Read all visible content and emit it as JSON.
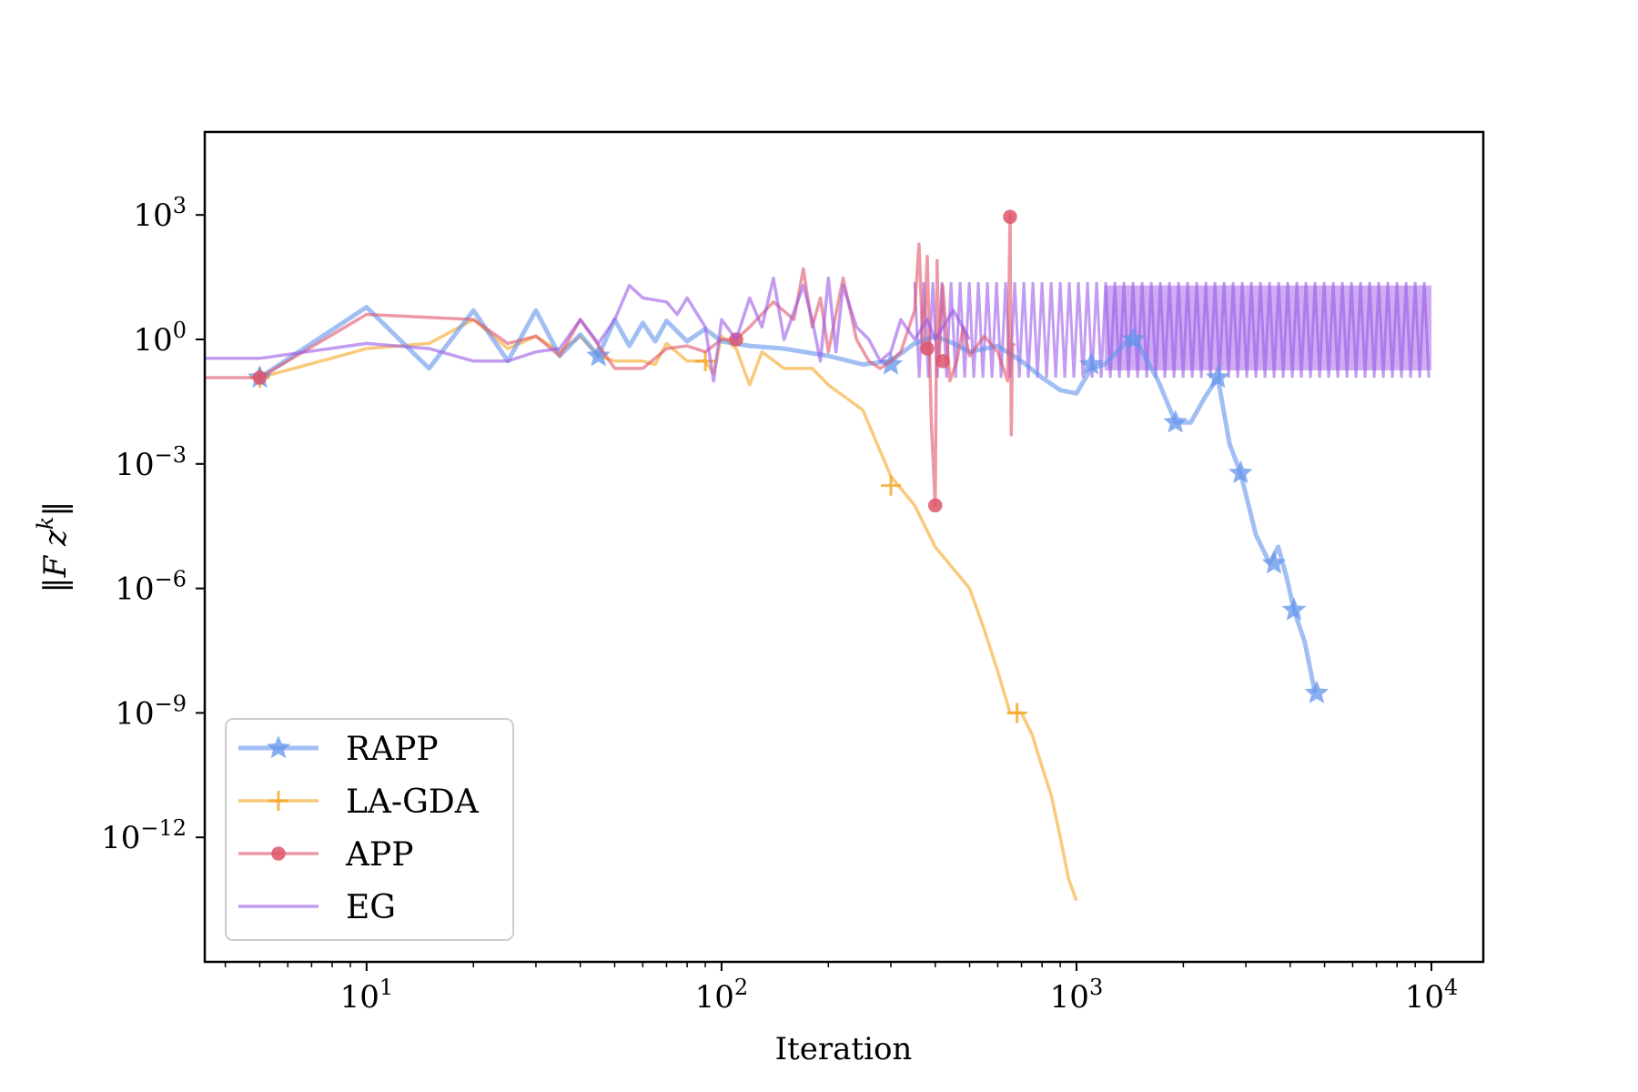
{
  "chart_data": {
    "type": "line",
    "xlabel": "Iteration",
    "ylabel": "‖F z^k‖",
    "x_scale": "log",
    "y_scale": "log",
    "xlim": [
      3.5,
      14000
    ],
    "ylim": [
      1e-15,
      100000.0
    ],
    "x_major_ticks": [
      {
        "value": 10,
        "base": "10",
        "exp": "1"
      },
      {
        "value": 100,
        "base": "10",
        "exp": "2"
      },
      {
        "value": 1000,
        "base": "10",
        "exp": "3"
      },
      {
        "value": 10000,
        "base": "10",
        "exp": "4"
      }
    ],
    "y_major_ticks": [
      {
        "value": 1000,
        "base": "10",
        "exp": "3"
      },
      {
        "value": 1,
        "base": "10",
        "exp": "0"
      },
      {
        "value": 0.001,
        "base": "10",
        "exp": "−3"
      },
      {
        "value": 1e-06,
        "base": "10",
        "exp": "−6"
      },
      {
        "value": 1e-09,
        "base": "10",
        "exp": "−9"
      },
      {
        "value": 1e-12,
        "base": "10",
        "exp": "−12"
      }
    ],
    "grid": false,
    "legend_position": "lower-left",
    "series": [
      {
        "name": "RAPP",
        "color": "#6495ed",
        "marker": "star",
        "points": [
          [
            5,
            0.12
          ],
          [
            10,
            6
          ],
          [
            15,
            0.2
          ],
          [
            20,
            5
          ],
          [
            25,
            0.3
          ],
          [
            30,
            5
          ],
          [
            35,
            0.4
          ],
          [
            40,
            1.3
          ],
          [
            45,
            0.4
          ],
          [
            50,
            3
          ],
          [
            55,
            0.7
          ],
          [
            60,
            2.5
          ],
          [
            65,
            0.9
          ],
          [
            70,
            2.8
          ],
          [
            80,
            0.9
          ],
          [
            90,
            1.8
          ],
          [
            100,
            0.9
          ],
          [
            120,
            0.7
          ],
          [
            150,
            0.6
          ],
          [
            200,
            0.4
          ],
          [
            250,
            0.25
          ],
          [
            300,
            0.3
          ],
          [
            350,
            0.8
          ],
          [
            400,
            1.2
          ],
          [
            450,
            0.8
          ],
          [
            500,
            0.5
          ],
          [
            600,
            0.7
          ],
          [
            700,
            0.3
          ],
          [
            800,
            0.12
          ],
          [
            900,
            0.06
          ],
          [
            1000,
            0.05
          ],
          [
            1100,
            0.2
          ],
          [
            1200,
            0.25
          ],
          [
            1300,
            0.5
          ],
          [
            1400,
            1.0
          ],
          [
            1500,
            0.7
          ],
          [
            1700,
            0.1
          ],
          [
            1900,
            0.01
          ],
          [
            2100,
            0.01
          ],
          [
            2300,
            0.04
          ],
          [
            2500,
            0.12
          ],
          [
            2700,
            0.003
          ],
          [
            2900,
            0.0006
          ],
          [
            3200,
            2e-05
          ],
          [
            3500,
            4e-06
          ],
          [
            3700,
            1e-05
          ],
          [
            3900,
            2e-06
          ],
          [
            4100,
            3e-07
          ],
          [
            4400,
            5e-08
          ],
          [
            4700,
            3e-09
          ]
        ],
        "markers": [
          [
            5,
            0.12
          ],
          [
            45,
            0.4
          ],
          [
            300,
            0.25
          ],
          [
            1100,
            0.25
          ],
          [
            1450,
            1.0
          ],
          [
            1900,
            0.01
          ],
          [
            2500,
            0.12
          ],
          [
            2900,
            0.0006
          ],
          [
            3600,
            4e-06
          ],
          [
            4100,
            3e-07
          ],
          [
            4750,
            3e-09
          ]
        ]
      },
      {
        "name": "LA-GDA",
        "color": "#f5a623",
        "marker": "plus",
        "points": [
          [
            5,
            0.12
          ],
          [
            10,
            0.6
          ],
          [
            15,
            0.8
          ],
          [
            20,
            3
          ],
          [
            25,
            0.6
          ],
          [
            30,
            1.2
          ],
          [
            35,
            0.5
          ],
          [
            40,
            1.2
          ],
          [
            45,
            0.4
          ],
          [
            50,
            0.3
          ],
          [
            60,
            0.3
          ],
          [
            65,
            0.25
          ],
          [
            70,
            0.8
          ],
          [
            80,
            0.3
          ],
          [
            90,
            0.3
          ],
          [
            95,
            0.15
          ],
          [
            100,
            1.2
          ],
          [
            110,
            0.6
          ],
          [
            120,
            0.08
          ],
          [
            130,
            0.5
          ],
          [
            150,
            0.2
          ],
          [
            180,
            0.2
          ],
          [
            200,
            0.08
          ],
          [
            250,
            0.02
          ],
          [
            300,
            0.0005
          ],
          [
            350,
            0.0001
          ],
          [
            400,
            1e-05
          ],
          [
            500,
            1e-06
          ],
          [
            550,
            1e-07
          ],
          [
            600,
            1e-08
          ],
          [
            650,
            1e-09
          ],
          [
            700,
            1e-09
          ],
          [
            750,
            3e-10
          ],
          [
            800,
            5e-11
          ],
          [
            850,
            1e-11
          ],
          [
            900,
            1e-12
          ],
          [
            950,
            1e-13
          ],
          [
            1000,
            3e-14
          ]
        ],
        "markers": [
          [
            5,
            0.12
          ],
          [
            90,
            0.3
          ],
          [
            300,
            0.0003
          ],
          [
            680,
            1e-09
          ]
        ]
      },
      {
        "name": "APP",
        "color": "#e0556a",
        "marker": "circle",
        "points": [
          [
            3.5,
            0.12
          ],
          [
            5,
            0.12
          ],
          [
            10,
            4
          ],
          [
            20,
            3
          ],
          [
            25,
            0.8
          ],
          [
            30,
            1.2
          ],
          [
            35,
            0.4
          ],
          [
            40,
            3
          ],
          [
            50,
            0.2
          ],
          [
            60,
            0.2
          ],
          [
            70,
            0.6
          ],
          [
            80,
            0.7
          ],
          [
            90,
            0.5
          ],
          [
            100,
            1.0
          ],
          [
            110,
            1.0
          ],
          [
            120,
            2
          ],
          [
            140,
            8
          ],
          [
            160,
            3
          ],
          [
            170,
            50
          ],
          [
            180,
            2
          ],
          [
            190,
            10
          ],
          [
            200,
            0.5
          ],
          [
            220,
            30
          ],
          [
            240,
            1
          ],
          [
            260,
            0.3
          ],
          [
            280,
            0.2
          ],
          [
            300,
            0.3
          ],
          [
            320,
            0.5
          ],
          [
            350,
            5
          ],
          [
            360,
            200
          ],
          [
            370,
            0.5
          ],
          [
            380,
            100
          ],
          [
            390,
            0.01
          ],
          [
            400,
            0.0001
          ],
          [
            405,
            80
          ],
          [
            410,
            0.3
          ],
          [
            420,
            20
          ],
          [
            440,
            0.1
          ],
          [
            460,
            0.3
          ],
          [
            480,
            2
          ],
          [
            500,
            0.4
          ],
          [
            550,
            1.2
          ],
          [
            600,
            0.5
          ],
          [
            640,
            0.1
          ],
          [
            650,
            1000
          ],
          [
            655,
            0.005
          ],
          [
            660,
            0.7
          ],
          [
            670,
            0.8
          ]
        ],
        "markers": [
          [
            5,
            0.12
          ],
          [
            110,
            1.0
          ],
          [
            380,
            0.6
          ],
          [
            400,
            0.0001
          ],
          [
            420,
            0.3
          ],
          [
            650,
            900
          ]
        ]
      },
      {
        "name": "EG",
        "color": "#9b59e6",
        "marker": "none",
        "points": [
          [
            3.5,
            0.35
          ],
          [
            5,
            0.35
          ],
          [
            10,
            0.8
          ],
          [
            15,
            0.6
          ],
          [
            20,
            0.3
          ],
          [
            25,
            0.3
          ],
          [
            30,
            0.5
          ],
          [
            35,
            0.6
          ],
          [
            40,
            3
          ],
          [
            45,
            0.8
          ],
          [
            50,
            3
          ],
          [
            55,
            20
          ],
          [
            60,
            10
          ],
          [
            70,
            8
          ],
          [
            75,
            4
          ],
          [
            80,
            10
          ],
          [
            90,
            2
          ],
          [
            95,
            0.1
          ],
          [
            100,
            3
          ],
          [
            110,
            1
          ],
          [
            120,
            10
          ],
          [
            130,
            2
          ],
          [
            140,
            30
          ],
          [
            150,
            1
          ],
          [
            170,
            20
          ],
          [
            180,
            3
          ],
          [
            190,
            0.3
          ],
          [
            200,
            30
          ],
          [
            210,
            0.5
          ],
          [
            220,
            20
          ],
          [
            240,
            2
          ],
          [
            260,
            1
          ],
          [
            280,
            0.3
          ],
          [
            300,
            0.5
          ],
          [
            320,
            3
          ],
          [
            350,
            1
          ],
          [
            380,
            3
          ],
          [
            400,
            1
          ],
          [
            450,
            5
          ],
          [
            500,
            1
          ]
        ],
        "band": {
          "x_start": 350,
          "x_end": 10000,
          "lower": 0.12,
          "upper": 40
        }
      }
    ]
  }
}
